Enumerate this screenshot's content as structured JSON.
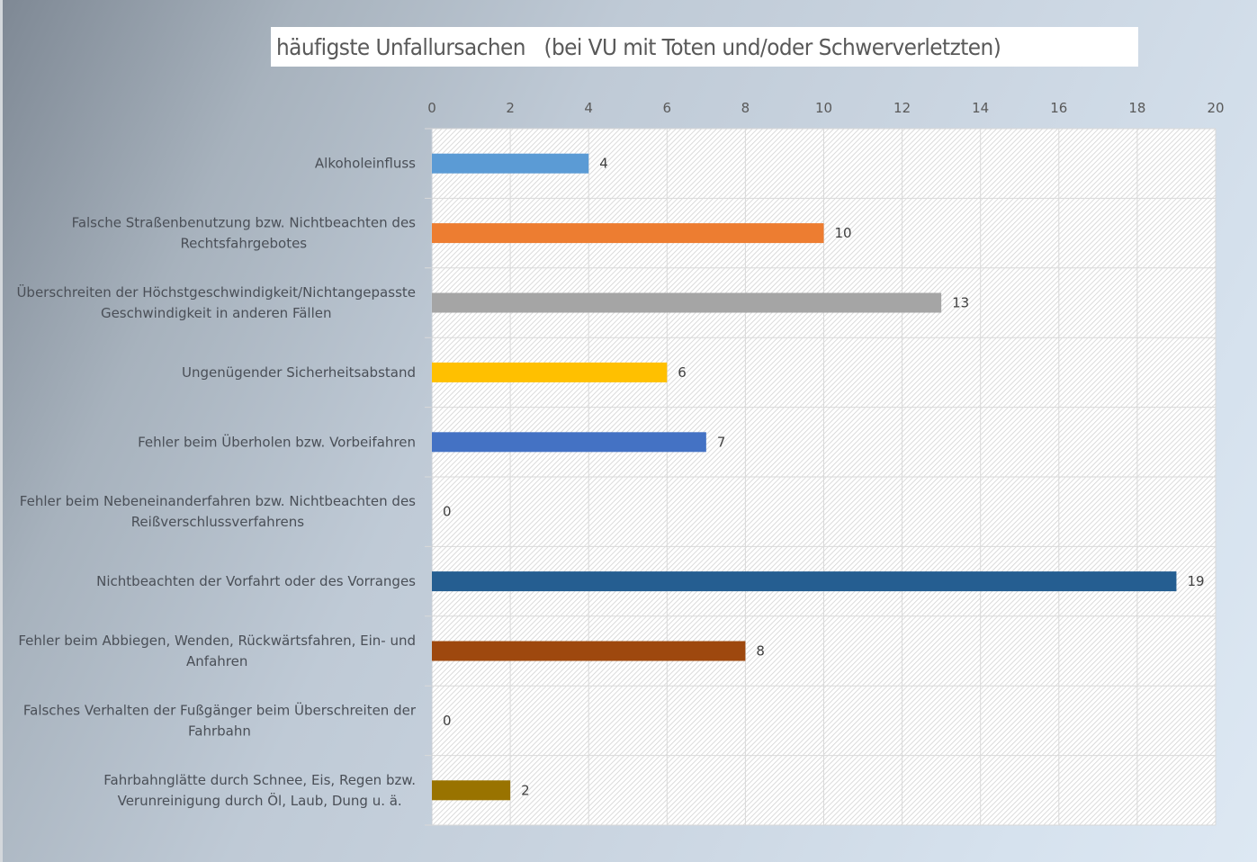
{
  "chart_data": {
    "type": "bar",
    "orientation": "horizontal",
    "title": "häufigste Unfallursachen   (bei VU mit Toten und/oder Schwerverletzten)",
    "xlabel": "",
    "ylabel": "",
    "xlim": [
      0,
      20
    ],
    "x_ticks": [
      0,
      2,
      4,
      6,
      8,
      10,
      12,
      14,
      16,
      18,
      20
    ],
    "x_axis_position": "top",
    "grid": true,
    "legend": "none",
    "categories": [
      [
        "Alkoholeinfluss"
      ],
      [
        "Falsche Straßenbenutzung bzw. Nichtbeachten des",
        "Rechtsfahrgebotes"
      ],
      [
        "Überschreiten der Höchstgeschwindigkeit/Nichtangepasste",
        "Geschwindigkeit in anderen Fällen"
      ],
      [
        "Ungenügender Sicherheitsabstand"
      ],
      [
        "Fehler beim Überholen bzw. Vorbeifahren"
      ],
      [
        "Fehler beim Nebeneinanderfahren bzw. Nichtbeachten des",
        "Reißverschlussverfahrens"
      ],
      [
        "Nichtbeachten der Vorfahrt oder des Vorranges"
      ],
      [
        "Fehler beim Abbiegen, Wenden, Rückwärtsfahren, Ein- und",
        "Anfahren"
      ],
      [
        "Falsches Verhalten der Fußgänger beim Überschreiten der",
        "Fahrbahn"
      ],
      [
        "Fahrbahnglätte durch Schnee, Eis, Regen bzw.",
        "Verunreinigung durch Öl, Laub, Dung u. ä."
      ]
    ],
    "values": [
      4,
      10,
      13,
      6,
      7,
      0,
      19,
      8,
      0,
      2
    ],
    "colors": [
      "#5b9bd5",
      "#ed7d31",
      "#a5a5a5",
      "#ffc000",
      "#4472c4",
      "#70ad47",
      "#255e91",
      "#9e480e",
      "#636363",
      "#997300"
    ],
    "data_labels": [
      "4",
      "10",
      "13",
      "6",
      "7",
      "0",
      "19",
      "8",
      "0",
      "2"
    ]
  }
}
